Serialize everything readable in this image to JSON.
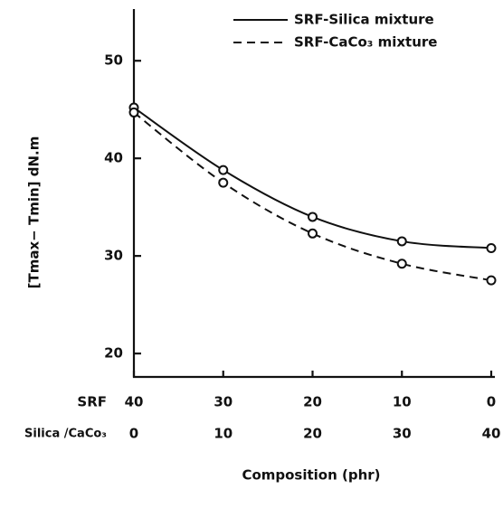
{
  "chart_data": {
    "type": "line",
    "x_label": "Composition (phr)",
    "y_label": "[Tmax− Tmin] dN.m",
    "x_row_label": "SRF",
    "x": [
      40,
      30,
      20,
      10,
      0
    ],
    "xlim": [
      40,
      0
    ],
    "x2_row_label": "Silica /CaCo₃",
    "x2_labels": [
      0,
      10,
      20,
      30,
      40
    ],
    "ylim": [
      17.6,
      55.3
    ],
    "yticks": [
      20,
      30,
      40,
      50
    ],
    "legend": "upper right",
    "series": [
      {
        "name": "SRF-Silica mixture",
        "color": "#111",
        "style": "solid",
        "values": [
          45.2,
          38.8,
          34,
          31.5,
          30.8
        ]
      },
      {
        "name": "SRF-CaCo₃ mixture",
        "color": "#111",
        "style": "dashed",
        "values": [
          44.7,
          37.5,
          32.3,
          29.2,
          27.5
        ]
      }
    ]
  }
}
